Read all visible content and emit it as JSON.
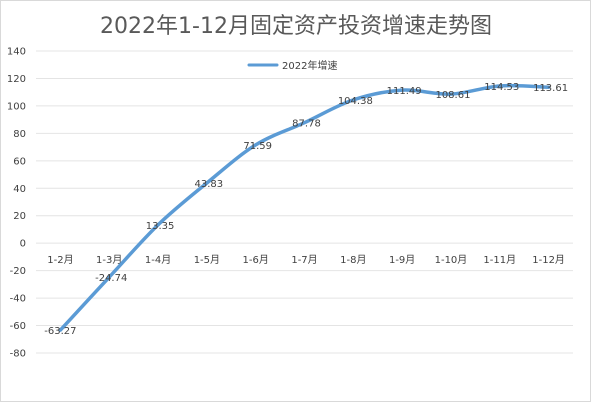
{
  "chart_data": {
    "type": "line",
    "title": "2022年1-12月固定资产投资增速走势图",
    "categories": [
      "1-2月",
      "1-3月",
      "1-4月",
      "1-5月",
      "1-6月",
      "1-7月",
      "1-8月",
      "1-9月",
      "1-10月",
      "1-11月",
      "1-12月"
    ],
    "series": [
      {
        "name": "2022年增速",
        "values": [
          -63.27,
          -24.74,
          13.35,
          43.83,
          71.59,
          87.78,
          104.38,
          111.49,
          108.61,
          114.53,
          113.61
        ],
        "labels": [
          "-63.27",
          "-24.74",
          "13.35",
          "43.83",
          "71.59",
          "87.78",
          "104.38",
          "111.49",
          "108.61",
          "114.53",
          "113.61"
        ],
        "color": "#5b9bd5"
      }
    ],
    "ylim": [
      -80,
      140
    ],
    "yticks": [
      140,
      120,
      100,
      80,
      60,
      40,
      20,
      0,
      -20,
      -40,
      -60,
      -80
    ],
    "xlabel": "",
    "ylabel": "",
    "grid": true,
    "legend": "top-center",
    "colors": {
      "grid": "#e4e4e4",
      "line": "#5b9bd5"
    }
  }
}
